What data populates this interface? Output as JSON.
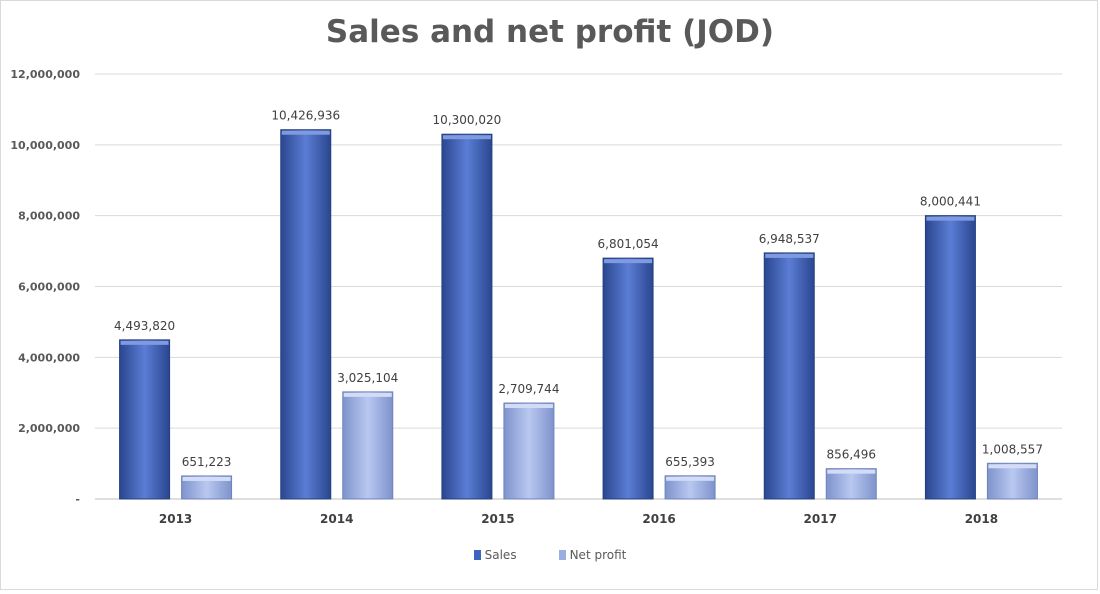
{
  "chart_data": {
    "type": "bar",
    "title": "Sales and net profit (JOD)",
    "categories": [
      "2013",
      "2014",
      "2015",
      "2016",
      "2017",
      "2018"
    ],
    "series": [
      {
        "name": "Sales",
        "color": "#3f63c0",
        "values": [
          4493820,
          10426936,
          10300020,
          6801054,
          6948537,
          8000441
        ],
        "labels": [
          "4,493,820",
          "10,426,936",
          "10,300,020",
          "6,801,054",
          "6,948,537",
          "8,000,441"
        ]
      },
      {
        "name": "Net profit",
        "color": "#9aaee3",
        "values": [
          651223,
          3025104,
          2709744,
          655393,
          856496,
          1008557
        ],
        "labels": [
          "651,223",
          "3,025,104",
          "2,709,744",
          "655,393",
          "856,496",
          "1,008,557"
        ]
      }
    ],
    "ylim": [
      0,
      12000000
    ],
    "yticks": [
      0,
      2000000,
      4000000,
      6000000,
      8000000,
      10000000,
      12000000
    ],
    "ytick_labels": [
      "-",
      "2,000,000",
      "4,000,000",
      "6,000,000",
      "8,000,000",
      "10,000,000",
      "12,000,000"
    ],
    "grid": true,
    "legend_position": "bottom"
  }
}
